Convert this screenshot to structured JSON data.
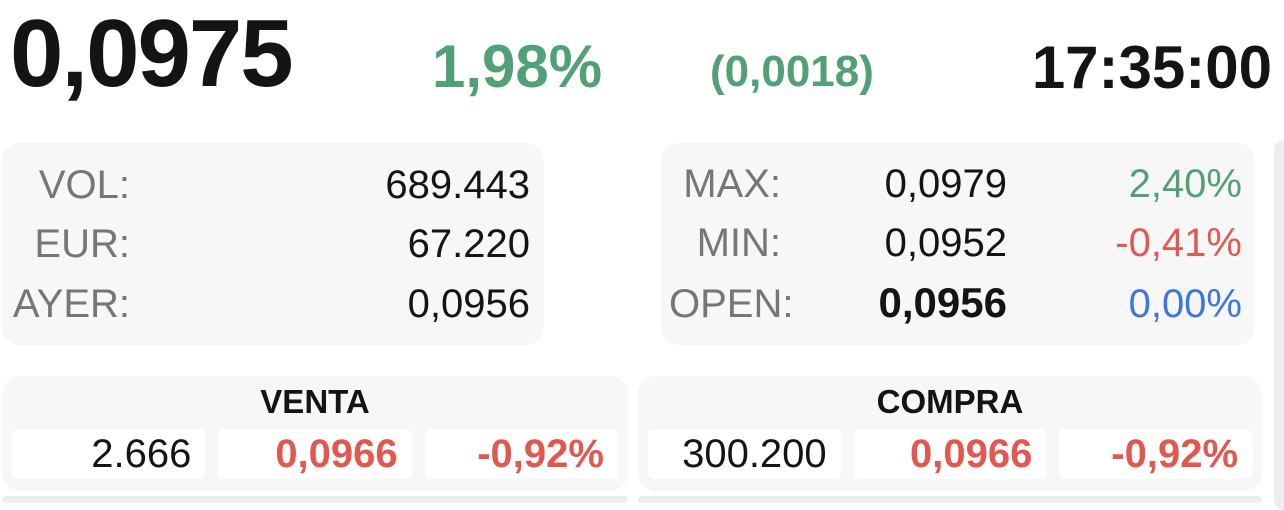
{
  "quote": {
    "price": "0,0975",
    "change_percent": "1,98%",
    "change_absolute": "(0,0018)",
    "change_color": "#52A077",
    "time": "17:35:00"
  },
  "stats_left": {
    "rows": [
      {
        "label": "VOL:",
        "value": "689.443"
      },
      {
        "label": "EUR:",
        "value": "67.220"
      },
      {
        "label": "AYER:",
        "value": "0,0956"
      }
    ]
  },
  "stats_right": {
    "rows": [
      {
        "label": "MAX:",
        "value": "0,0979",
        "percent": "2,40%",
        "percent_color": "#52A077"
      },
      {
        "label": "MIN:",
        "value": "0,0952",
        "percent": "-0,41%",
        "percent_color": "#E05850"
      },
      {
        "label": "OPEN:",
        "value": "0,0956",
        "percent": "0,00%",
        "percent_color": "#3D76E0"
      }
    ]
  },
  "sell": {
    "title": "VENTA",
    "volume": "2.666",
    "price": "0,0966",
    "percent": "-0,92%",
    "accent_color": "#E05850"
  },
  "buy": {
    "title": "COMPRA",
    "volume": "300.200",
    "price": "0,0966",
    "percent": "-0,92%",
    "accent_color": "#E05850"
  },
  "colors": {
    "positive": "#52A077",
    "negative": "#E05850",
    "neutral": "#3D76E0",
    "label_gray": "#767676",
    "block_background": "#f7f7f7"
  }
}
